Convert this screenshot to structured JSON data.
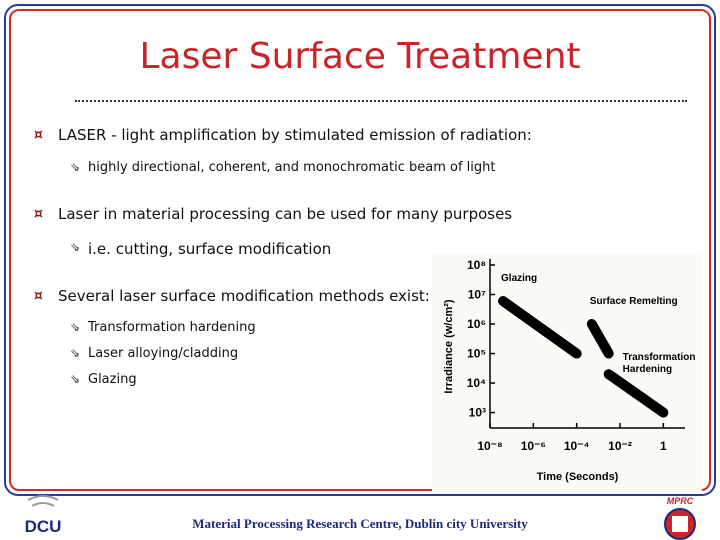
{
  "title": "Laser Surface Treatment",
  "bullets": [
    {
      "text": "LASER  - light amplification by stimulated emission of radiation:",
      "sub": [
        "highly directional, coherent, and  monochromatic beam of light"
      ]
    },
    {
      "text": "Laser in material processing can be used for many purposes",
      "sub": [
        "i.e. cutting, surface modification"
      ]
    },
    {
      "text": "Several laser surface modification methods exist:",
      "sub": [
        "Transformation hardening",
        "Laser alloying/cladding",
        "Glazing"
      ]
    }
  ],
  "chart_data": {
    "type": "line",
    "x_label": "Time (Seconds)",
    "y_label": "Irradiance (w/cm²)",
    "x_log": true,
    "y_log": true,
    "xlim": [
      1e-08,
      10
    ],
    "ylim": [
      300,
      100000000
    ],
    "xticks": [
      {
        "value": 1e-08,
        "label": "10⁻⁸"
      },
      {
        "value": 1e-06,
        "label": "10⁻⁶"
      },
      {
        "value": 0.0001,
        "label": "10⁻⁴"
      },
      {
        "value": 0.01,
        "label": "10⁻²"
      },
      1
    ],
    "yticks": [
      {
        "value": 1000,
        "label": "10³"
      },
      {
        "value": 10000,
        "label": "10⁴"
      },
      {
        "value": 100000,
        "label": "10⁵"
      },
      {
        "value": 1000000,
        "label": "10⁶"
      },
      {
        "value": 10000000,
        "label": "10⁷"
      },
      {
        "value": 100000000,
        "label": "10⁸"
      }
    ],
    "series": [
      {
        "name": "Glazing",
        "color": "#000000",
        "x": [
          4e-08,
          0.0001
        ],
        "values": [
          6000000,
          100000
        ]
      },
      {
        "name": "Surface Remelting",
        "color": "#000000",
        "x": [
          0.0005,
          0.003
        ],
        "values": [
          1000000,
          100000
        ]
      },
      {
        "name": "Transformation Hardening",
        "color": "#000000",
        "x": [
          0.003,
          1
        ],
        "values": [
          20000,
          1000
        ]
      }
    ]
  },
  "footer": "Material Processing Research Centre, Dublin city University",
  "logos": {
    "left": "DCU",
    "right": "MPRC"
  }
}
